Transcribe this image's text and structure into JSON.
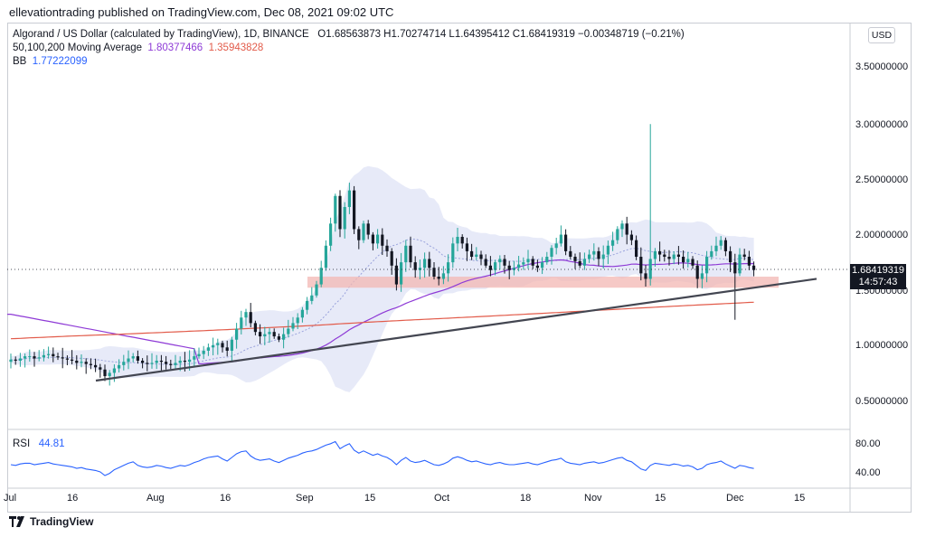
{
  "header": {
    "published": "ellevationtrading published on TradingView.com, Dec 08, 2021 09:02 UTC"
  },
  "legend": {
    "symbol": "Algorand / US Dollar (calculated by TradingView), 1D, BINANCE",
    "ohlc": "O1.68563873 H1.70274714 L1.64395412 C1.68419319 −0.00348719 (−0.21%)",
    "ma_label": "50,100,200 Moving Average",
    "ma_value_1": "1.80377466",
    "ma_value_2": "1.35943828",
    "bb_label": "BB",
    "bb_value": "1.77222099"
  },
  "currency_button": "USD",
  "price_tag": {
    "price": "1.68419319",
    "countdown": "14:57:43"
  },
  "rsi": {
    "label": "RSI",
    "value": "44.81",
    "ticks": [
      "80.00",
      "40.00"
    ]
  },
  "footer": {
    "brand": "TradingView"
  },
  "colors": {
    "up": "#26a69a",
    "down": "#131722",
    "ma_fast": "#8e3ad6",
    "ma_slow": "#e25b4a",
    "bb_fill": "#dfe3f6",
    "support_zone": "#f3b7b3",
    "trendline": "#434651",
    "rsi_line": "#2962ff"
  },
  "chart_data": {
    "type": "candlestick",
    "y_axis_ticks": [
      "3.50000000",
      "3.00000000",
      "2.50000000",
      "2.00000000",
      "1.50000000",
      "1.00000000",
      "0.50000000"
    ],
    "x_axis_ticks": [
      "Jul",
      "16",
      "Aug",
      "16",
      "Sep",
      "15",
      "Oct",
      "18",
      "Nov",
      "15",
      "Dec",
      "15"
    ],
    "ylim": [
      0.3,
      3.8
    ],
    "last_price": 1.68419319,
    "support_zone": [
      1.52,
      1.62
    ],
    "trendline": {
      "start": [
        "Jul 21",
        0.68
      ],
      "end": [
        "Dec 15",
        1.6
      ]
    },
    "close": [
      0.87,
      0.86,
      0.88,
      0.9,
      0.9,
      0.88,
      0.89,
      0.91,
      0.92,
      0.9,
      0.89,
      0.88,
      0.87,
      0.86,
      0.84,
      0.85,
      0.83,
      0.82,
      0.8,
      0.78,
      0.72,
      0.75,
      0.79,
      0.82,
      0.85,
      0.88,
      0.9,
      0.86,
      0.84,
      0.83,
      0.84,
      0.86,
      0.85,
      0.83,
      0.82,
      0.84,
      0.86,
      0.85,
      0.87,
      0.9,
      0.92,
      0.95,
      0.98,
      1.0,
      1.02,
      0.98,
      0.95,
      1.05,
      1.15,
      1.25,
      1.3,
      1.2,
      1.12,
      1.08,
      1.1,
      1.12,
      1.08,
      1.05,
      1.1,
      1.15,
      1.2,
      1.25,
      1.32,
      1.4,
      1.45,
      1.55,
      1.7,
      1.9,
      2.1,
      2.35,
      2.05,
      2.25,
      2.4,
      2.05,
      1.95,
      2.1,
      2.0,
      1.92,
      2.0,
      1.9,
      1.85,
      1.72,
      1.55,
      1.75,
      1.9,
      1.75,
      1.68,
      1.7,
      1.78,
      1.7,
      1.62,
      1.6,
      1.65,
      1.75,
      1.92,
      1.98,
      1.92,
      1.85,
      1.8,
      1.82,
      1.78,
      1.72,
      1.68,
      1.75,
      1.78,
      1.72,
      1.68,
      1.7,
      1.73,
      1.75,
      1.78,
      1.72,
      1.7,
      1.75,
      1.8,
      1.88,
      1.92,
      2.0,
      1.85,
      1.8,
      1.76,
      1.72,
      1.78,
      1.82,
      1.85,
      1.78,
      1.82,
      1.9,
      1.95,
      2.05,
      2.1,
      2.0,
      1.95,
      1.8,
      1.65,
      1.6,
      1.78,
      1.85,
      1.82,
      1.8,
      1.78,
      1.82,
      1.8,
      1.75,
      1.78,
      1.72,
      1.6,
      1.65,
      1.8,
      1.85,
      1.9,
      1.95,
      1.85,
      1.75,
      1.65,
      1.82,
      1.8,
      1.72,
      1.68
    ],
    "rsi_values": [
      50,
      49,
      51,
      52,
      52,
      50,
      51,
      52,
      53,
      51,
      50,
      49,
      48,
      47,
      45,
      46,
      44,
      43,
      42,
      40,
      35,
      38,
      43,
      46,
      49,
      52,
      54,
      49,
      47,
      46,
      47,
      49,
      48,
      46,
      45,
      47,
      49,
      48,
      50,
      53,
      55,
      58,
      60,
      61,
      62,
      58,
      55,
      60,
      65,
      68,
      69,
      62,
      58,
      56,
      57,
      58,
      55,
      53,
      56,
      59,
      61,
      63,
      66,
      68,
      69,
      71,
      74,
      77,
      79,
      82,
      72,
      76,
      79,
      70,
      66,
      69,
      66,
      63,
      65,
      62,
      60,
      56,
      50,
      56,
      60,
      55,
      53,
      54,
      56,
      53,
      50,
      49,
      51,
      54,
      59,
      61,
      59,
      56,
      54,
      55,
      53,
      51,
      50,
      52,
      53,
      51,
      50,
      50,
      51,
      52,
      53,
      51,
      50,
      52,
      54,
      56,
      57,
      59,
      54,
      52,
      51,
      50,
      52,
      53,
      54,
      52,
      53,
      55,
      57,
      59,
      60,
      56,
      54,
      49,
      44,
      42,
      49,
      52,
      51,
      50,
      49,
      51,
      50,
      48,
      49,
      47,
      43,
      45,
      50,
      52,
      53,
      55,
      51,
      48,
      45,
      49,
      48,
      46,
      44.81
    ]
  }
}
